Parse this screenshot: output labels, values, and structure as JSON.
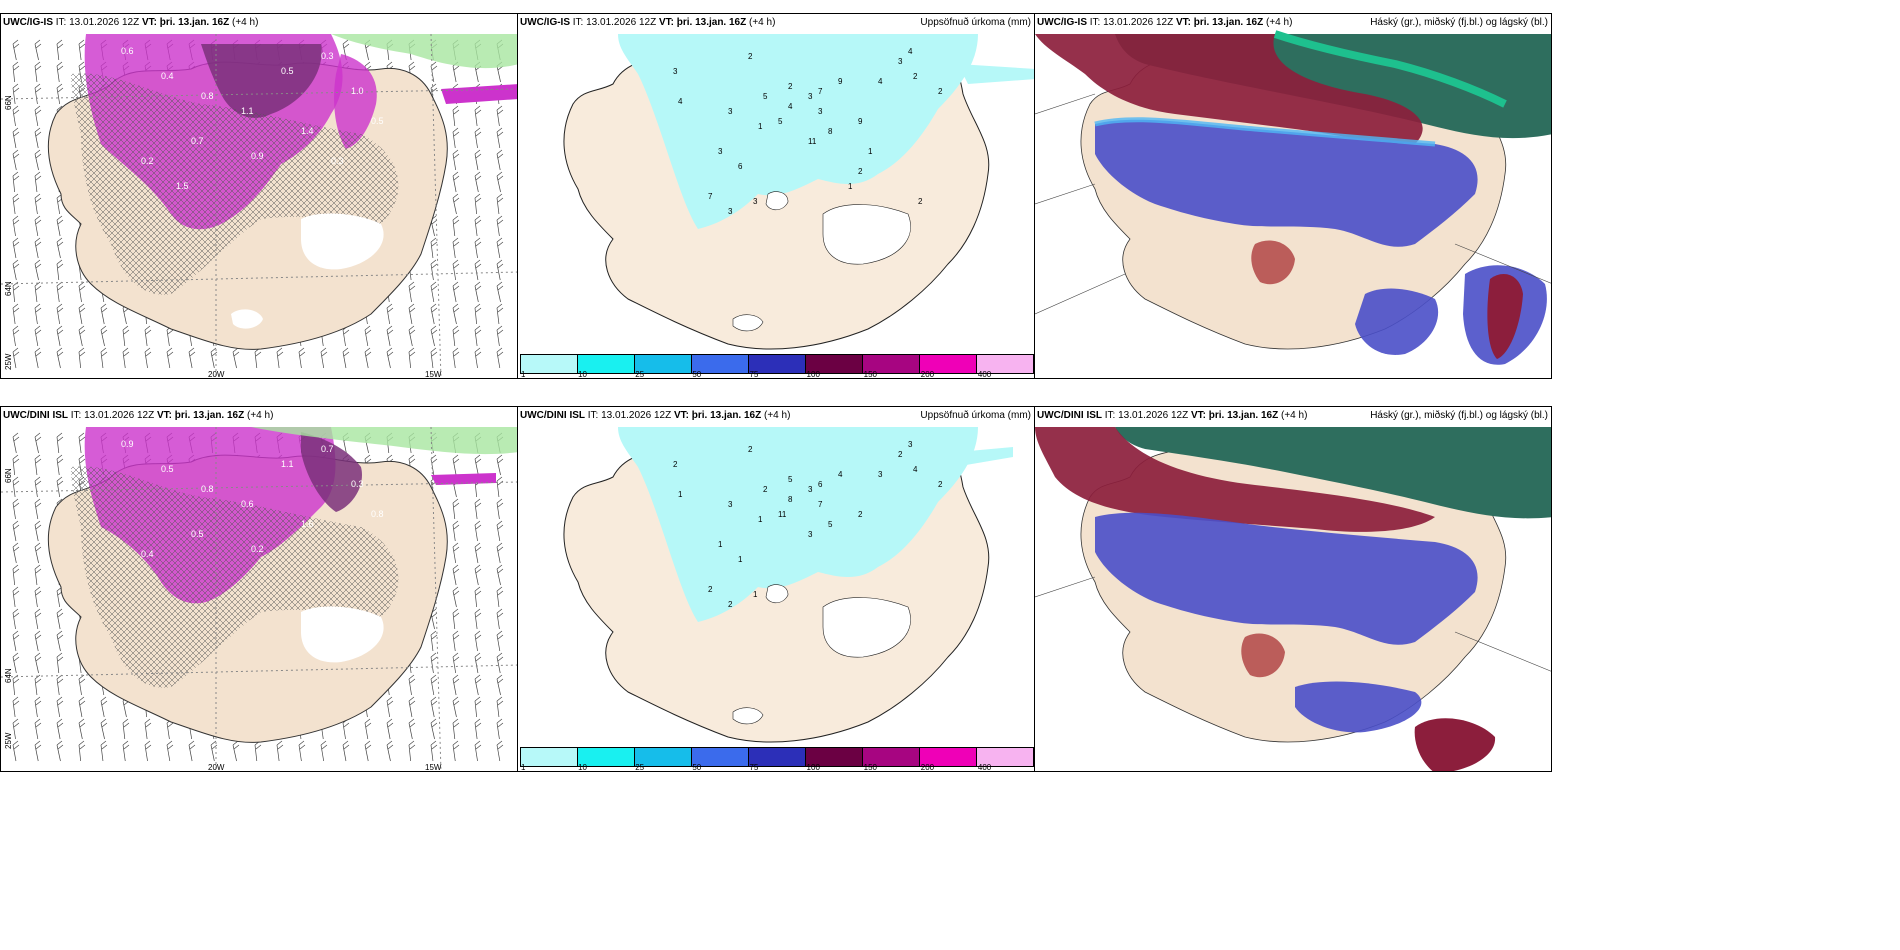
{
  "rows": [
    {
      "model": "UWC/IG-IS",
      "it": "IT: 13.01.2026 12Z",
      "vt_label": "VT:",
      "vt_value": "þri. 13.jan. 16Z",
      "lead": "(+4 h)"
    },
    {
      "model": "UWC/DINI ISL",
      "it": "IT: 13.01.2026 12Z",
      "vt_label": "VT:",
      "vt_value": "þri. 13.jan. 16Z",
      "lead": "(+4 h)"
    }
  ],
  "precip_title": "Uppsöfnuð úrkoma (mm)",
  "cloud_title": "Háský (gr.), miðský (fj.bl.) og lágský (bl.)",
  "axis": {
    "lat66": "66N",
    "lat64": "64N",
    "lon25": "25W",
    "lon20": "20W",
    "lon15": "15W"
  },
  "colorbar": {
    "ticks": [
      "1",
      "10",
      "25",
      "50",
      "75",
      "100",
      "150",
      "200",
      "400"
    ],
    "colors": [
      "#b7f9f9",
      "#19f0f0",
      "#16bdea",
      "#3b6bec",
      "#2c2fb8",
      "#6b0043",
      "#a70581",
      "#ef00b7",
      "#f7b3f0"
    ]
  },
  "colors": {
    "land": "#f3e2cf",
    "sea": "#ffffff",
    "precip_light": "#b6f8f8",
    "purple": "#cc33cc",
    "purple_dark": "#7a307a",
    "wind": "#444444"
  },
  "precip_labels_top": [
    "2",
    "3",
    "4",
    "3",
    "5",
    "1",
    "2",
    "3",
    "3",
    "4",
    "5",
    "7",
    "9",
    "8",
    "11",
    "9",
    "4",
    "3",
    "2",
    "2",
    "4",
    "3",
    "6",
    "7",
    "3",
    "3",
    "2",
    "1",
    "1",
    "2"
  ],
  "precip_labels_bottom": [
    "2",
    "2",
    "1",
    "3",
    "2",
    "1",
    "5",
    "3",
    "7",
    "8",
    "11",
    "6",
    "4",
    "5",
    "3",
    "2",
    "3",
    "2",
    "4",
    "2",
    "3",
    "1",
    "1",
    "2",
    "2",
    "1"
  ],
  "qpf_labels_top": [
    "0.6",
    "0.4",
    "0.8",
    "1.1",
    "0.5",
    "0.3",
    "1.0",
    "0.7",
    "0.2",
    "1.4",
    "0.9",
    "0.5",
    "1.5",
    "0.3"
  ],
  "qpf_labels_bottom": [
    "0.9",
    "0.5",
    "0.8",
    "0.6",
    "1.1",
    "0.7",
    "0.3",
    "0.5",
    "0.4",
    "1.6",
    "0.2",
    "0.8"
  ]
}
